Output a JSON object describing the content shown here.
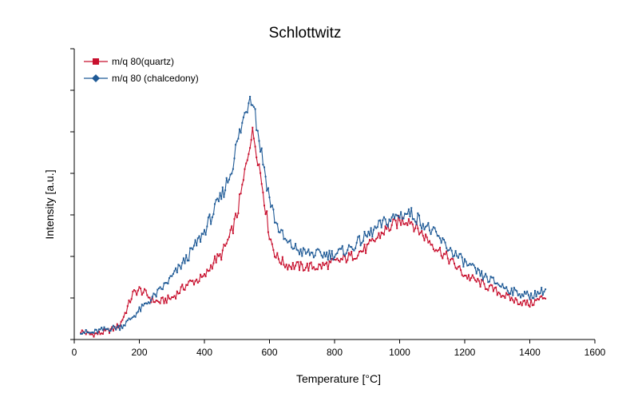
{
  "chart_data": {
    "type": "line",
    "title": "Schlottwitz",
    "xlabel": "Temperature [°C]",
    "ylabel": "Intensity [a.u.]",
    "xlim": [
      0,
      1600
    ],
    "ylim": [
      0,
      7
    ],
    "xticks": [
      0,
      200,
      400,
      600,
      800,
      1000,
      1200,
      1400,
      1600
    ],
    "yticks": [
      0,
      1,
      2,
      3,
      4,
      5,
      6,
      7
    ],
    "y_tick_labels_shown": false,
    "grid": false,
    "legend": "top-left",
    "series": [
      {
        "name": "m/q 80(quartz)",
        "color": "#c8102e",
        "marker": "square",
        "x": [
          20,
          50,
          80,
          100,
          120,
          140,
          160,
          180,
          200,
          220,
          240,
          260,
          300,
          350,
          400,
          430,
          450,
          480,
          500,
          520,
          540,
          550,
          560,
          580,
          600,
          620,
          650,
          700,
          750,
          800,
          850,
          900,
          950,
          1000,
          1030,
          1050,
          1100,
          1150,
          1200,
          1250,
          1300,
          1350,
          1400,
          1450
        ],
        "y": [
          0.2,
          0.12,
          0.15,
          0.2,
          0.25,
          0.35,
          0.7,
          1.1,
          1.2,
          1.1,
          0.95,
          0.9,
          1.0,
          1.35,
          1.5,
          1.9,
          2.0,
          2.5,
          3.0,
          3.8,
          4.8,
          4.95,
          4.6,
          3.6,
          2.5,
          2.0,
          1.8,
          1.75,
          1.75,
          1.85,
          2.0,
          2.2,
          2.6,
          2.85,
          2.9,
          2.7,
          2.3,
          1.95,
          1.55,
          1.35,
          1.15,
          0.95,
          0.85,
          1.05
        ]
      },
      {
        "name": "m/q 80 (chalcedony)",
        "color": "#1f5a96",
        "marker": "diamond",
        "x": [
          20,
          50,
          80,
          100,
          120,
          140,
          160,
          180,
          200,
          220,
          240,
          260,
          300,
          350,
          400,
          430,
          450,
          480,
          500,
          520,
          540,
          550,
          560,
          580,
          600,
          620,
          650,
          700,
          750,
          800,
          850,
          900,
          950,
          1000,
          1030,
          1050,
          1100,
          1150,
          1200,
          1250,
          1300,
          1350,
          1400,
          1450
        ],
        "y": [
          0.2,
          0.15,
          0.22,
          0.25,
          0.28,
          0.3,
          0.4,
          0.55,
          0.7,
          0.85,
          1.0,
          1.15,
          1.5,
          2.0,
          2.6,
          3.1,
          3.4,
          4.0,
          4.7,
          5.3,
          5.9,
          5.85,
          5.2,
          4.3,
          3.4,
          2.8,
          2.35,
          2.1,
          2.05,
          2.05,
          2.2,
          2.5,
          2.8,
          3.0,
          3.05,
          2.95,
          2.6,
          2.2,
          1.85,
          1.55,
          1.35,
          1.15,
          1.05,
          1.2
        ]
      }
    ]
  }
}
